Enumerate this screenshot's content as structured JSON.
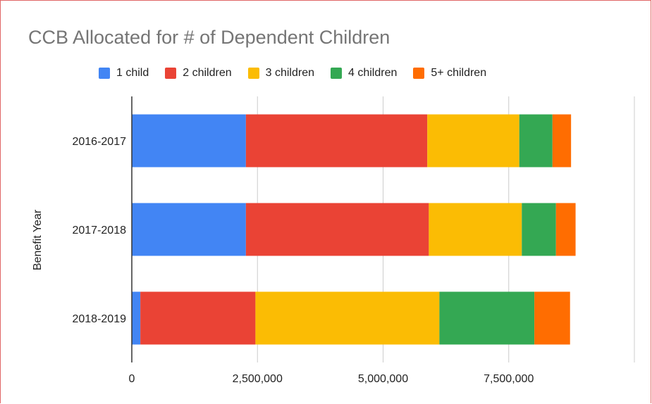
{
  "chart_data": {
    "type": "bar",
    "orientation": "horizontal",
    "stacked": true,
    "title": "CCB Allocated for # of Dependent Children",
    "xlabel": "",
    "ylabel": "Benefit Year",
    "categories": [
      "2016-2017",
      "2017-2018",
      "2018-2019"
    ],
    "series": [
      {
        "name": "1 child",
        "color": "#4285f4",
        "values": [
          2270000,
          2270000,
          170000
        ]
      },
      {
        "name": "2 children",
        "color": "#ea4335",
        "values": [
          3610000,
          3640000,
          2290000
        ]
      },
      {
        "name": "3 children",
        "color": "#fbbc04",
        "values": [
          1830000,
          1850000,
          3660000
        ]
      },
      {
        "name": "4 children",
        "color": "#34a853",
        "values": [
          660000,
          680000,
          1890000
        ]
      },
      {
        "name": "5+ children",
        "color": "#ff6d01",
        "values": [
          370000,
          390000,
          710000
        ]
      }
    ],
    "xlim": [
      0,
      10000000
    ],
    "xticks": [
      0,
      2500000,
      5000000,
      7500000
    ],
    "xtick_labels": [
      "0",
      "2,500,000",
      "5,000,000",
      "7,500,000"
    ],
    "grid": true,
    "legend_position": "top"
  }
}
